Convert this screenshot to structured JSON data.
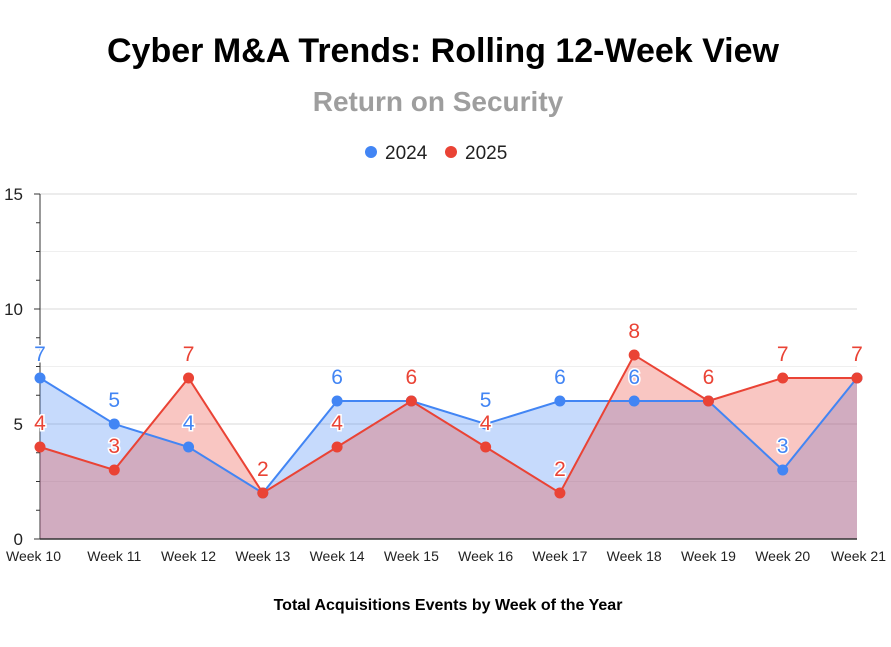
{
  "colors": {
    "series_2024": "#4285f4",
    "series_2025": "#ea4335",
    "grid": "#d9d9d9",
    "grid_minor": "#efefef"
  },
  "chart_data": {
    "type": "area",
    "title": "Cyber M&A Trends: Rolling 12-Week View",
    "subtitle": "Return on Security",
    "xlabel": "Total Acquisitions Events by Week of the Year",
    "ylabel": "",
    "ylim": [
      0,
      15
    ],
    "yticks": [
      0,
      5,
      10,
      15
    ],
    "grid": true,
    "legend": "top-center",
    "categories": [
      "Week 10",
      "Week 11",
      "Week 12",
      "Week 13",
      "Week 14",
      "Week 15",
      "Week 16",
      "Week 17",
      "Week 18",
      "Week 19",
      "Week 20",
      "Week 21"
    ],
    "series": [
      {
        "name": "2024",
        "values": [
          7,
          5,
          4,
          2,
          6,
          6,
          5,
          6,
          6,
          6,
          3,
          7
        ]
      },
      {
        "name": "2025",
        "values": [
          4,
          3,
          7,
          2,
          4,
          6,
          4,
          2,
          8,
          6,
          7,
          7
        ]
      }
    ]
  }
}
